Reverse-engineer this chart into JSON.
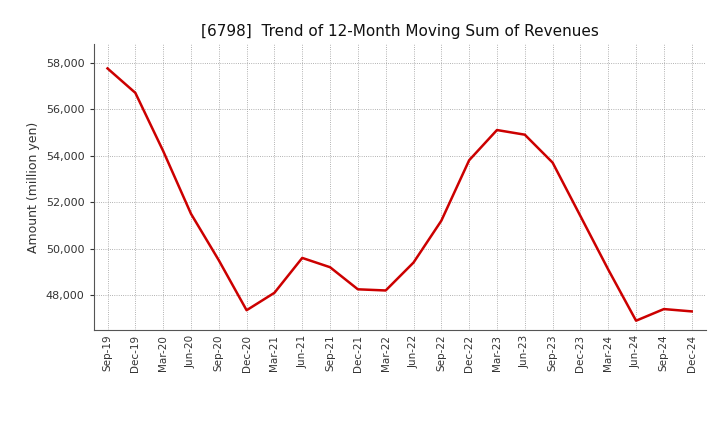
{
  "title": "[6798]  Trend of 12-Month Moving Sum of Revenues",
  "ylabel": "Amount (million yen)",
  "line_color": "#cc0000",
  "line_width": 1.8,
  "background_color": "#ffffff",
  "plot_bg_color": "#ffffff",
  "grid_color": "#999999",
  "ylim": [
    46500,
    58800
  ],
  "yticks": [
    48000,
    50000,
    52000,
    54000,
    56000,
    58000
  ],
  "labels": [
    "Sep-19",
    "Dec-19",
    "Mar-20",
    "Jun-20",
    "Sep-20",
    "Dec-20",
    "Mar-21",
    "Jun-21",
    "Sep-21",
    "Dec-21",
    "Mar-22",
    "Jun-22",
    "Sep-22",
    "Dec-22",
    "Mar-23",
    "Jun-23",
    "Sep-23",
    "Dec-23",
    "Mar-24",
    "Jun-24",
    "Sep-24",
    "Dec-24"
  ],
  "values": [
    57750,
    56700,
    54200,
    51500,
    49500,
    47350,
    48100,
    49600,
    49200,
    48250,
    48200,
    49400,
    51200,
    53800,
    55100,
    54900,
    53700,
    51400,
    49100,
    46900,
    47400,
    47300
  ]
}
